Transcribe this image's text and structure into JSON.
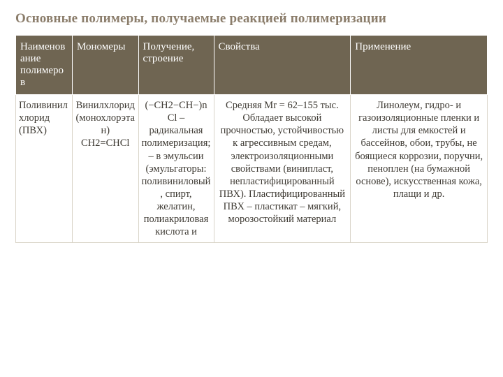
{
  "title": "Основные полимеры, получаемые реакцией полимеризации",
  "headers": {
    "c1": "Наименование полимеров",
    "c2": "Мономеры",
    "c3": "Получение, строение",
    "c4": "Свойства",
    "c5": "Применение"
  },
  "colWidths": {
    "c1": "12%",
    "c2": "14%",
    "c3": "16%",
    "c4": "29%",
    "c5": "29%"
  },
  "row": {
    "c1": "Поливинилхлорид (ПВХ)",
    "c2": "Винилхлорид (монохлорэтан) СН2=СНCl",
    "c3": "(−СН2−СН−)n            Cl – радикальная полимеризация; – в эмульсии (эмульгаторы: поливиниловый, спирт, желатин, полиакриловая кислота и",
    "c4": "Средняя Мr = 62–155 тыс. Обладает высокой прочностью, устойчивостью к агрессивным средам, электроизоляционными свойствами (винипласт, непластифицированный ПВХ). Пластифицированный ПВХ – пластикат – мягкий, морозостойкий материал",
    "c5": "Линолеум, гидро-  и газоизоляционные пленки и листы для емкостей и бассейнов, обои, трубы, не боящиеся коррозии, поручни, пеноплен  (на бумажной основе), искусственная кожа, плащи и др."
  },
  "colors": {
    "title": "#8b7d6b",
    "headerBg": "#6f6552",
    "headerFg": "#ffffff",
    "cellBorder": "#d9d4c8",
    "cellFg": "#3e3a33"
  }
}
